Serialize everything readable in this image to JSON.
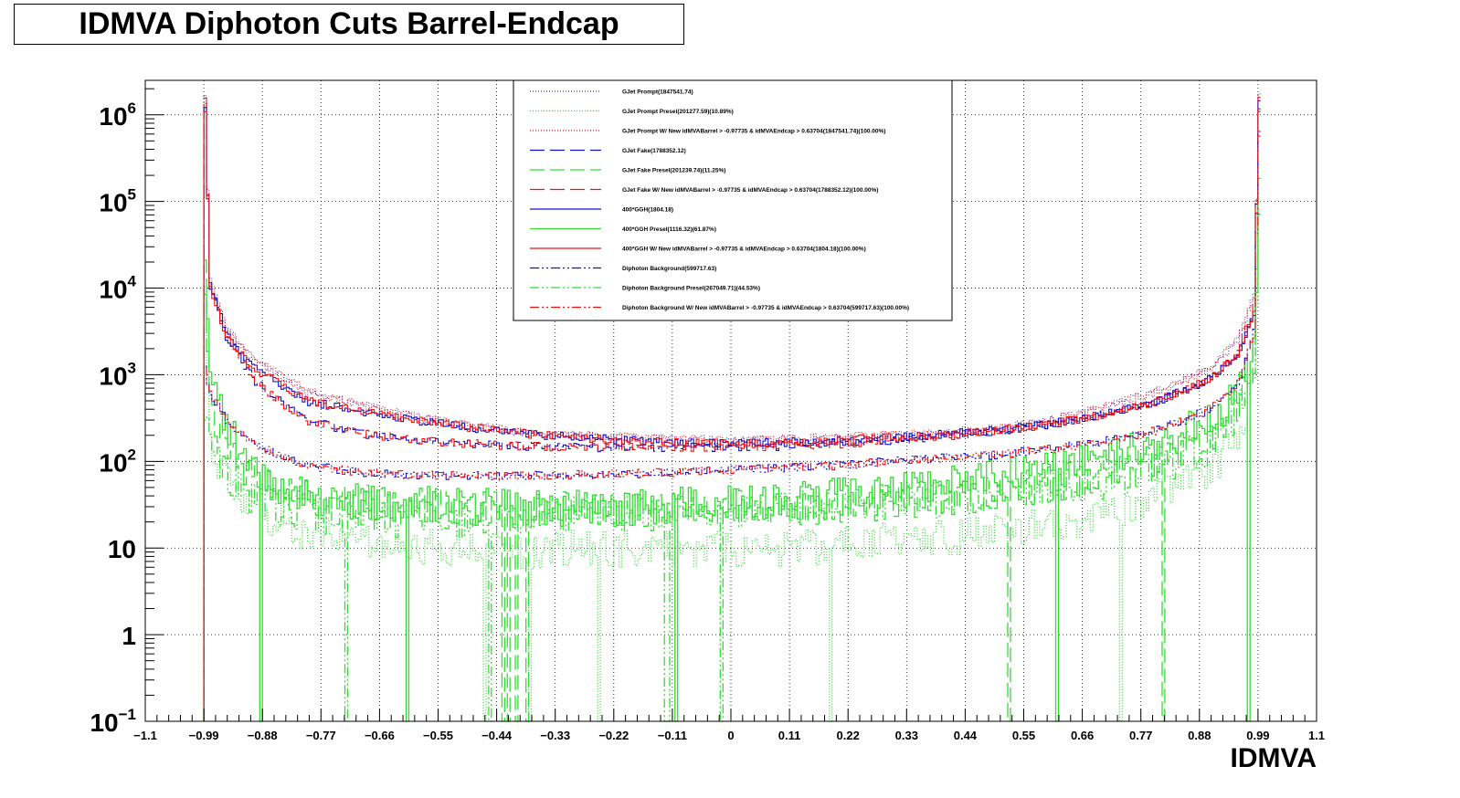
{
  "chart_data": {
    "type": "line",
    "title": "IDMVA Diphoton Cuts Barrel-Endcap",
    "xlabel": "IDMVA",
    "ylabel": "",
    "xlim": [
      -1.1,
      1.1
    ],
    "ylim": [
      0.1,
      2500000
    ],
    "log_y": true,
    "grid": true,
    "legend_position": "top-center",
    "x_ticks": [
      "−1.1",
      "−0.99",
      "−0.88",
      "−0.77",
      "−0.66",
      "−0.55",
      "−0.44",
      "−0.33",
      "−0.22",
      "−0.11",
      "0",
      "0.11",
      "0.22",
      "0.33",
      "0.44",
      "0.55",
      "0.66",
      "0.77",
      "0.88",
      "0.99",
      "1.1"
    ],
    "y_ticks": [
      {
        "base": "10",
        "exp": "−1",
        "value": 0.1
      },
      {
        "base": "1",
        "exp": "",
        "value": 1
      },
      {
        "base": "10",
        "exp": "",
        "value": 10
      },
      {
        "base": "10",
        "exp": "2",
        "value": 100
      },
      {
        "base": "10",
        "exp": "3",
        "value": 1000
      },
      {
        "base": "10",
        "exp": "4",
        "value": 10000
      },
      {
        "base": "10",
        "exp": "5",
        "value": 100000
      },
      {
        "base": "10",
        "exp": "6",
        "value": 1000000
      }
    ],
    "x": [
      -0.99,
      -0.98,
      -0.95,
      -0.9,
      -0.85,
      -0.8,
      -0.7,
      -0.6,
      -0.5,
      -0.4,
      -0.3,
      -0.2,
      -0.1,
      0.0,
      0.1,
      0.2,
      0.3,
      0.4,
      0.5,
      0.6,
      0.7,
      0.8,
      0.9,
      0.95,
      0.98,
      0.99
    ],
    "series": [
      {
        "name": "GJet Prompt(1847541.74)",
        "color": "#6a2aa0",
        "dash": "1,2",
        "values": [
          1500000,
          12000,
          3500,
          1500,
          1000,
          650,
          450,
          330,
          260,
          220,
          200,
          190,
          180,
          175,
          180,
          190,
          200,
          215,
          240,
          300,
          420,
          650,
          1200,
          2500,
          8000,
          1600000
        ]
      },
      {
        "name": "GJet Prompt Presel(201277.59)(10.89%)",
        "color": "#33dd33",
        "dash": "1,2",
        "values": [
          15000,
          150,
          60,
          30,
          20,
          15,
          12,
          10,
          10,
          9,
          10,
          10,
          10,
          10,
          10,
          11,
          12,
          13,
          15,
          18,
          25,
          40,
          80,
          200,
          700,
          90000
        ]
      },
      {
        "name": "GJet Prompt W/ New idMVABarrel > -0.97735 & idMVAEndcap > 0.63704(1847541.74)(100.00%)",
        "color": "#ee1111",
        "dash": "1,2",
        "values": [
          1500000,
          12000,
          3500,
          1500,
          1000,
          650,
          450,
          330,
          260,
          220,
          200,
          190,
          180,
          175,
          180,
          190,
          200,
          215,
          240,
          300,
          420,
          650,
          1200,
          2500,
          8000,
          1600000
        ]
      },
      {
        "name": "GJet Fake(1788352.12)",
        "color": "#1111cc",
        "dash": "16,6",
        "values": [
          1400000,
          11000,
          3000,
          900,
          500,
          300,
          210,
          180,
          160,
          150,
          145,
          145,
          145,
          145,
          150,
          160,
          175,
          195,
          225,
          270,
          350,
          500,
          900,
          1800,
          6000,
          1500000
        ]
      },
      {
        "name": "GJet Fake Presel(201239.74)(11.25%)",
        "color": "#33dd33",
        "dash": "16,6",
        "values": [
          20000,
          400,
          150,
          70,
          45,
          40,
          35,
          30,
          30,
          28,
          28,
          28,
          30,
          30,
          30,
          32,
          35,
          38,
          45,
          55,
          70,
          110,
          200,
          450,
          1500,
          150000
        ]
      },
      {
        "name": "GJet Fake W/ New idMVABarrel > -0.97735 & idMVAEndcap > 0.63704(1788352.12)(100.00%)",
        "color": "#ee1111",
        "dash": "16,6",
        "values": [
          1400000,
          11000,
          3000,
          900,
          500,
          300,
          210,
          180,
          160,
          150,
          145,
          145,
          145,
          145,
          150,
          160,
          175,
          195,
          225,
          270,
          350,
          500,
          900,
          1800,
          6000,
          1500000
        ]
      },
      {
        "name": "400*GGH(1804.18)",
        "color": "#1111cc",
        "dash": "",
        "values": [
          1200000,
          10000,
          2800,
          1200,
          800,
          500,
          380,
          300,
          250,
          210,
          190,
          175,
          165,
          160,
          165,
          175,
          190,
          205,
          230,
          270,
          350,
          500,
          900,
          1700,
          5000,
          1200000
        ]
      },
      {
        "name": "400*GGH Presel(1116.32)(61.87%)",
        "color": "#33dd33",
        "dash": "",
        "values": [
          10000,
          800,
          250,
          80,
          50,
          40,
          35,
          32,
          30,
          30,
          30,
          30,
          32,
          34,
          36,
          40,
          45,
          55,
          65,
          80,
          110,
          170,
          300,
          600,
          2000,
          60000
        ]
      },
      {
        "name": "400*GGH W/ New idMVABarrel > -0.97735 & idMVAEndcap > 0.63704(1804.18)(100.00%)",
        "color": "#ee1111",
        "dash": "",
        "values": [
          1200000,
          10000,
          2800,
          1200,
          800,
          500,
          380,
          300,
          250,
          210,
          190,
          175,
          165,
          160,
          165,
          175,
          190,
          205,
          230,
          270,
          350,
          500,
          900,
          1700,
          5000,
          1200000
        ]
      },
      {
        "name": "Diphoton Background(599717.63)",
        "color": "#1111cc",
        "dash": "10,3,2,3,2,3",
        "values": [
          1200,
          600,
          300,
          160,
          120,
          90,
          75,
          70,
          68,
          68,
          70,
          72,
          75,
          80,
          85,
          90,
          100,
          110,
          120,
          140,
          170,
          230,
          400,
          800,
          3000,
          600000
        ]
      },
      {
        "name": "Diphoton Background Presel(267049.71)(44.53%)",
        "color": "#33dd33",
        "dash": "10,3,2,3,2,3",
        "values": [
          300,
          150,
          70,
          40,
          30,
          25,
          22,
          22,
          22,
          23,
          24,
          25,
          27,
          28,
          30,
          32,
          34,
          37,
          42,
          50,
          60,
          85,
          150,
          350,
          1200,
          150000
        ]
      },
      {
        "name": "Diphoton Background W/ New idMVABarrel > -0.97735 & idMVAEndcap > 0.63704(599717.63)(100.00%)",
        "color": "#ee1111",
        "dash": "10,3,2,3,2,3",
        "values": [
          1200,
          600,
          300,
          160,
          120,
          90,
          75,
          70,
          68,
          68,
          70,
          72,
          75,
          80,
          85,
          90,
          100,
          110,
          120,
          140,
          170,
          230,
          400,
          800,
          3000,
          600000
        ]
      }
    ]
  }
}
